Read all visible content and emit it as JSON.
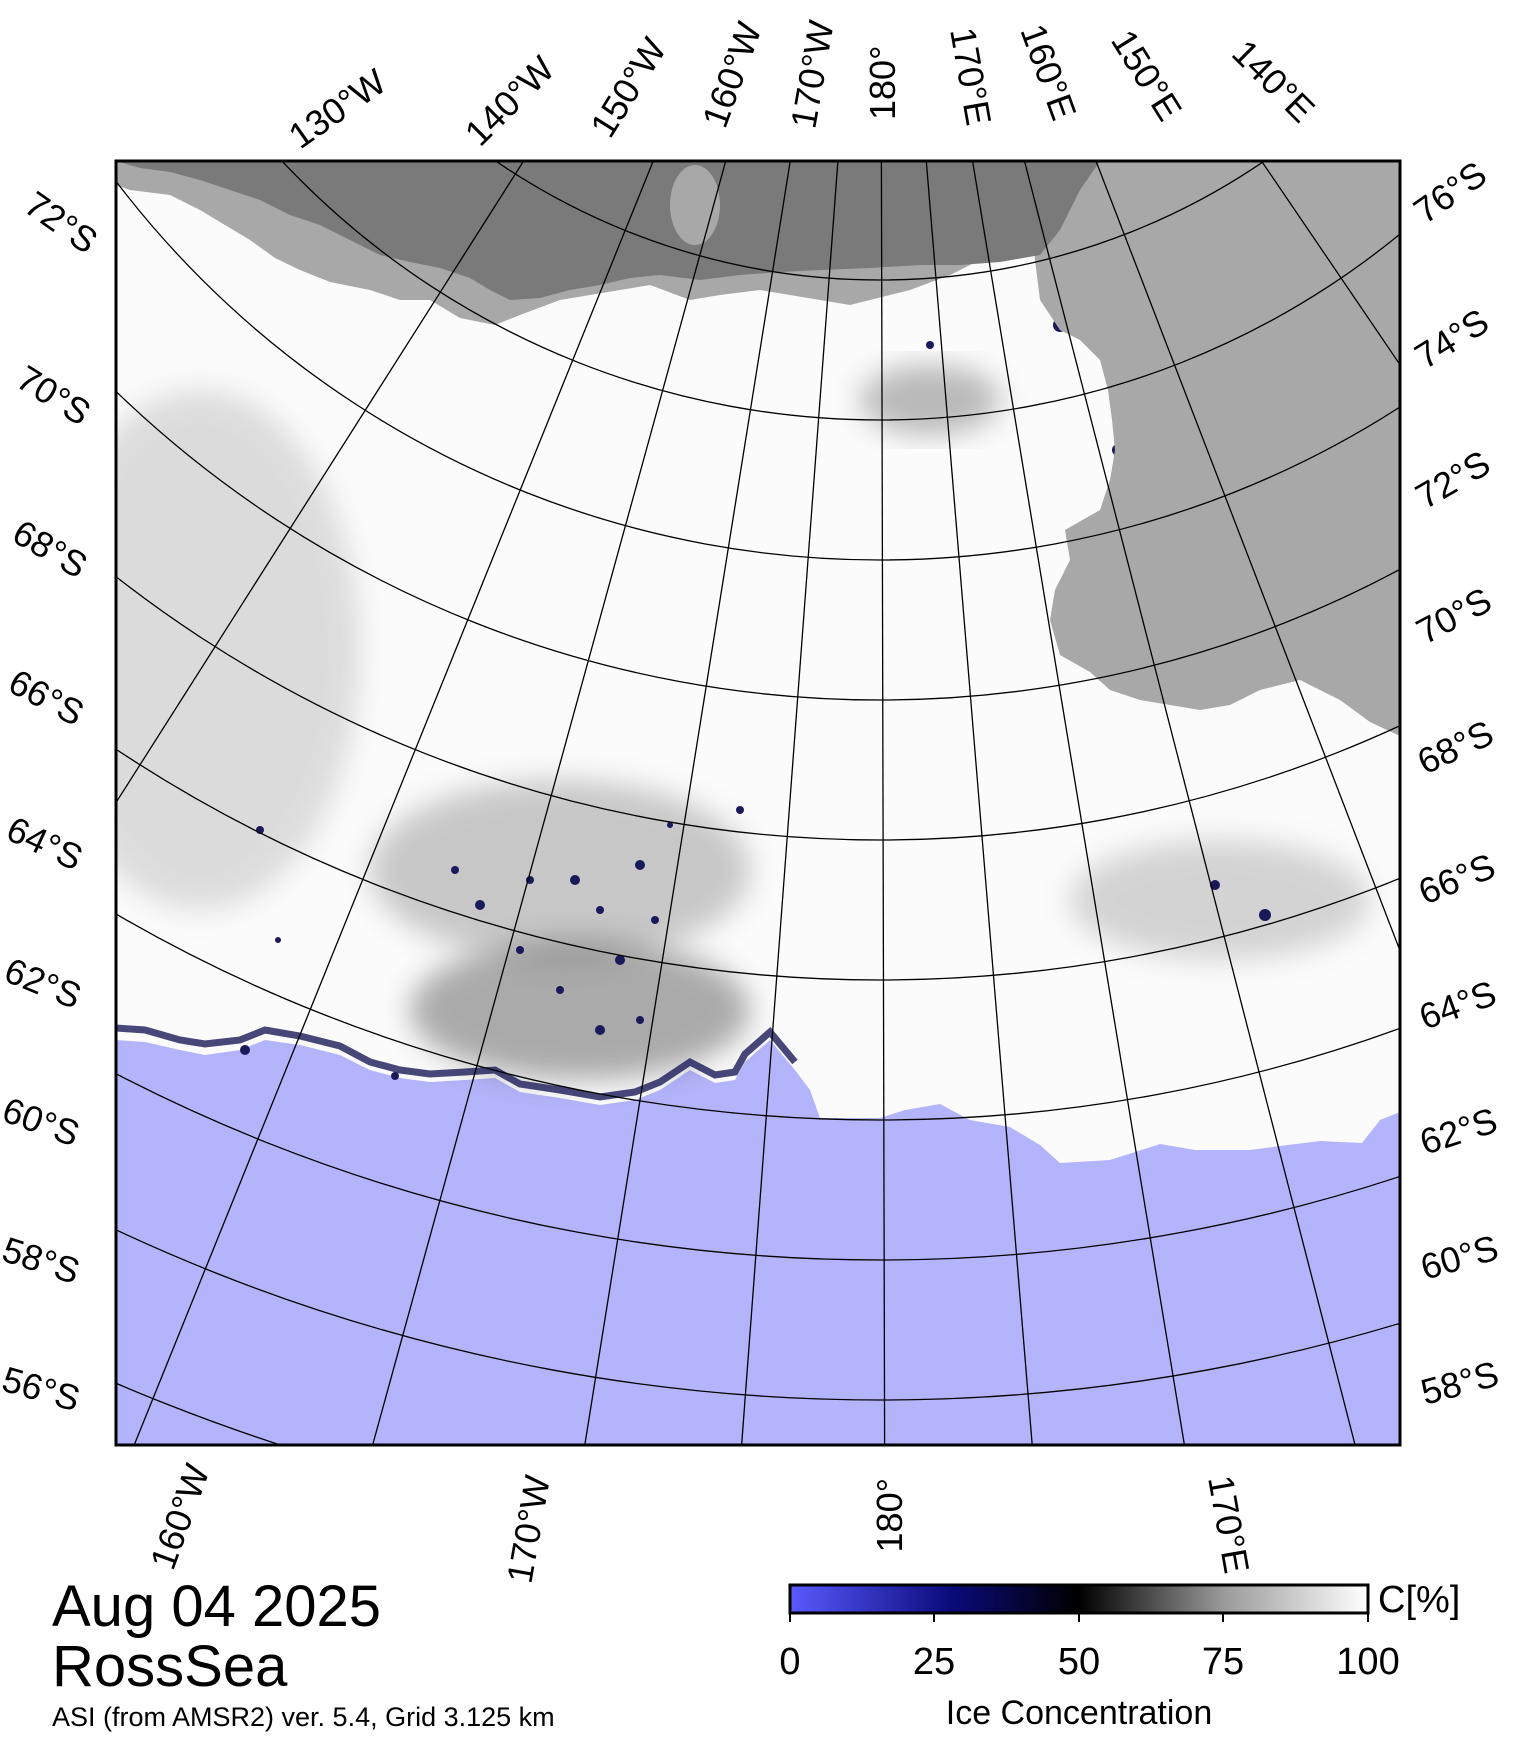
{
  "map": {
    "date": "Aug 04 2025",
    "region": "RossSea",
    "credit": "ASI (from AMSR2) ver. 5.4,  Grid 3.125 km",
    "colors": {
      "land": "#a8a8a8",
      "ice_shelf": "#7a7a7a",
      "open_water": "#b4b4fc",
      "sea_ice_full": "#ffffff",
      "frame": "#000000"
    },
    "top_labels": [
      "130°W",
      "140°W",
      "150°W",
      "160°W",
      "170°W",
      "180°",
      "170°E",
      "160°E",
      "150°E",
      "140°E"
    ],
    "left_labels": [
      "72°S",
      "70°S",
      "68°S",
      "66°S",
      "64°S",
      "62°S",
      "60°S",
      "58°S",
      "56°S"
    ],
    "right_labels": [
      "76°S",
      "74°S",
      "72°S",
      "70°S",
      "68°S",
      "66°S",
      "64°S",
      "62°S",
      "60°S",
      "58°S"
    ],
    "bottom_labels": [
      "160°W",
      "170°W",
      "180°",
      "170°E"
    ]
  },
  "legend": {
    "title": "Ice Concentration",
    "unit": "C[%]",
    "ticks": [
      "0",
      "25",
      "50",
      "75",
      "100"
    ],
    "gradient": [
      "#5a5aff",
      "#0a0a7a",
      "#000000",
      "#9a9a9a",
      "#ffffff"
    ]
  }
}
